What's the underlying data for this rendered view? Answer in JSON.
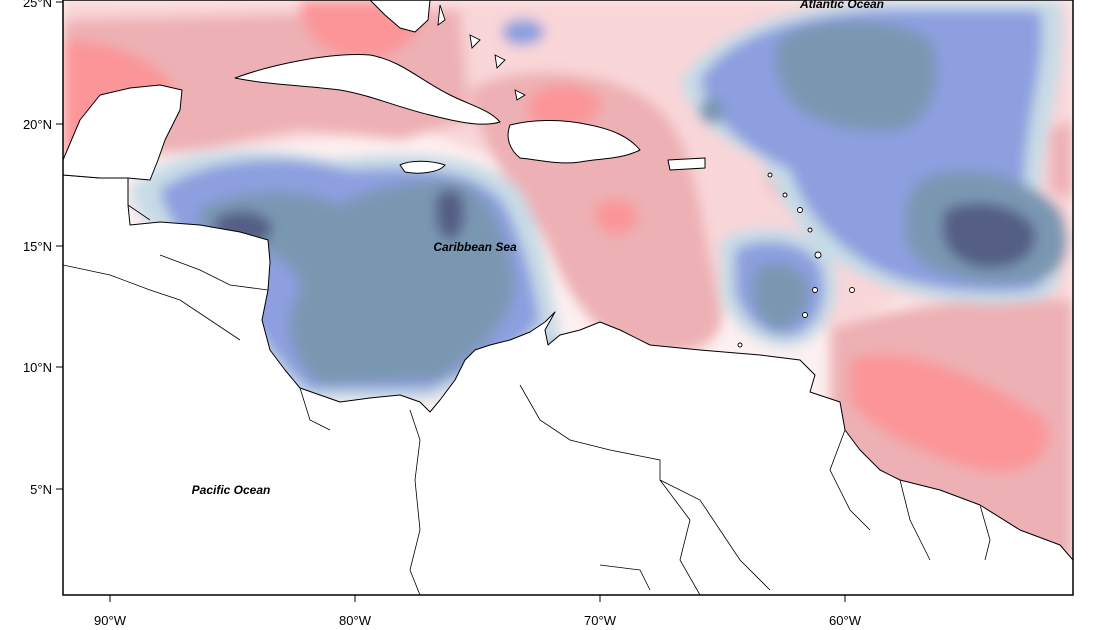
{
  "map": {
    "latitude_labels": [
      "25°N",
      "20°N",
      "15°N",
      "10°N",
      "5°N"
    ],
    "longitude_labels": [
      "90°W",
      "80°W",
      "70°W",
      "60°W"
    ],
    "place_labels": {
      "atlantic": "Atlantic Ocean",
      "caribbean": "Caribbean Sea",
      "pacific": "Pacific Ocean"
    },
    "colors": {
      "strong_negative": "#545f85",
      "negative": "#7a97b2",
      "weak_negative": "#8d9fdf",
      "slight_negative": "#c8dce6",
      "neutral": "#fdf0f0",
      "slight_positive": "#f9d6d8",
      "weak_positive": "#edb0b4",
      "positive": "#fb9598",
      "land": "#ffffff"
    }
  }
}
